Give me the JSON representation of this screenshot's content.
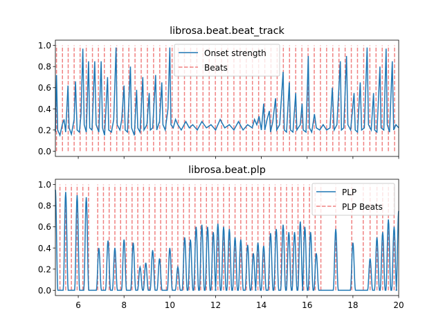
{
  "chart_data": [
    {
      "type": "line",
      "title": "librosa.beat.beat_track",
      "xlim": [
        5,
        20
      ],
      "ylim": [
        -0.05,
        1.05
      ],
      "yticks": [
        "0.0",
        "0.2",
        "0.4",
        "0.6",
        "0.8",
        "1.0"
      ],
      "xticks_labeled": false,
      "legend_position": "upper center",
      "series": [
        {
          "name": "Onset strength",
          "color": "#1f77b4",
          "style": "solid",
          "points": [
            [
              5.0,
              0.18
            ],
            [
              5.05,
              0.72
            ],
            [
              5.1,
              0.2
            ],
            [
              5.2,
              0.15
            ],
            [
              5.3,
              0.25
            ],
            [
              5.38,
              0.3
            ],
            [
              5.45,
              0.18
            ],
            [
              5.55,
              0.62
            ],
            [
              5.6,
              0.22
            ],
            [
              5.7,
              0.16
            ],
            [
              5.82,
              0.3
            ],
            [
              5.88,
              0.66
            ],
            [
              5.95,
              0.2
            ],
            [
              6.05,
              0.18
            ],
            [
              6.12,
              0.35
            ],
            [
              6.2,
              0.97
            ],
            [
              6.26,
              0.25
            ],
            [
              6.35,
              0.18
            ],
            [
              6.45,
              0.85
            ],
            [
              6.5,
              0.22
            ],
            [
              6.6,
              0.2
            ],
            [
              6.72,
              0.85
            ],
            [
              6.78,
              0.25
            ],
            [
              6.9,
              0.18
            ],
            [
              7.0,
              0.85
            ],
            [
              7.06,
              0.22
            ],
            [
              7.15,
              0.15
            ],
            [
              7.28,
              0.7
            ],
            [
              7.33,
              0.2
            ],
            [
              7.45,
              0.18
            ],
            [
              7.55,
              0.3
            ],
            [
              7.65,
              0.98
            ],
            [
              7.7,
              0.25
            ],
            [
              7.82,
              0.2
            ],
            [
              7.9,
              0.3
            ],
            [
              8.0,
              0.62
            ],
            [
              8.05,
              0.2
            ],
            [
              8.15,
              0.18
            ],
            [
              8.28,
              0.8
            ],
            [
              8.33,
              0.22
            ],
            [
              8.45,
              0.15
            ],
            [
              8.55,
              0.58
            ],
            [
              8.6,
              0.22
            ],
            [
              8.7,
              0.18
            ],
            [
              8.82,
              0.7
            ],
            [
              8.87,
              0.2
            ],
            [
              9.0,
              0.25
            ],
            [
              9.1,
              0.55
            ],
            [
              9.15,
              0.2
            ],
            [
              9.25,
              0.22
            ],
            [
              9.38,
              0.72
            ],
            [
              9.43,
              0.2
            ],
            [
              9.55,
              0.28
            ],
            [
              9.65,
              0.65
            ],
            [
              9.7,
              0.25
            ],
            [
              9.8,
              0.2
            ],
            [
              9.92,
              0.4
            ],
            [
              10.0,
              0.98
            ],
            [
              10.05,
              0.25
            ],
            [
              10.15,
              0.22
            ],
            [
              10.25,
              0.3
            ],
            [
              10.35,
              0.25
            ],
            [
              10.5,
              0.2
            ],
            [
              10.7,
              0.28
            ],
            [
              10.85,
              0.22
            ],
            [
              11.0,
              0.25
            ],
            [
              11.2,
              0.2
            ],
            [
              11.4,
              0.28
            ],
            [
              11.6,
              0.22
            ],
            [
              11.8,
              0.25
            ],
            [
              12.0,
              0.2
            ],
            [
              12.2,
              0.3
            ],
            [
              12.4,
              0.22
            ],
            [
              12.6,
              0.25
            ],
            [
              12.8,
              0.2
            ],
            [
              13.0,
              0.28
            ],
            [
              13.2,
              0.2
            ],
            [
              13.4,
              0.25
            ],
            [
              13.6,
              0.22
            ],
            [
              13.7,
              0.3
            ],
            [
              13.8,
              0.25
            ],
            [
              13.9,
              0.33
            ],
            [
              14.0,
              0.2
            ],
            [
              14.1,
              0.45
            ],
            [
              14.15,
              0.2
            ],
            [
              14.25,
              0.3
            ],
            [
              14.35,
              0.38
            ],
            [
              14.4,
              0.18
            ],
            [
              14.5,
              0.28
            ],
            [
              14.62,
              0.5
            ],
            [
              14.67,
              0.2
            ],
            [
              14.8,
              0.25
            ],
            [
              14.95,
              0.75
            ],
            [
              15.0,
              0.2
            ],
            [
              15.1,
              0.18
            ],
            [
              15.22,
              0.65
            ],
            [
              15.27,
              0.2
            ],
            [
              15.38,
              0.18
            ],
            [
              15.5,
              0.55
            ],
            [
              15.55,
              0.2
            ],
            [
              15.7,
              0.25
            ],
            [
              15.78,
              0.45
            ],
            [
              15.83,
              0.2
            ],
            [
              15.95,
              0.18
            ],
            [
              16.05,
              0.9
            ],
            [
              16.1,
              0.22
            ],
            [
              16.2,
              0.18
            ],
            [
              16.32,
              0.35
            ],
            [
              16.4,
              0.22
            ],
            [
              16.55,
              0.2
            ],
            [
              16.7,
              0.25
            ],
            [
              16.85,
              0.2
            ],
            [
              17.0,
              0.22
            ],
            [
              17.1,
              0.6
            ],
            [
              17.18,
              0.2
            ],
            [
              17.3,
              0.25
            ],
            [
              17.45,
              0.85
            ],
            [
              17.5,
              0.2
            ],
            [
              17.6,
              0.22
            ],
            [
              17.72,
              0.9
            ],
            [
              17.78,
              0.25
            ],
            [
              17.9,
              0.2
            ],
            [
              18.05,
              0.55
            ],
            [
              18.1,
              0.2
            ],
            [
              18.2,
              0.18
            ],
            [
              18.32,
              0.65
            ],
            [
              18.38,
              0.2
            ],
            [
              18.5,
              0.22
            ],
            [
              18.62,
              0.98
            ],
            [
              18.68,
              0.25
            ],
            [
              18.8,
              0.2
            ],
            [
              18.9,
              0.55
            ],
            [
              18.95,
              0.2
            ],
            [
              19.05,
              0.18
            ],
            [
              19.18,
              0.8
            ],
            [
              19.23,
              0.22
            ],
            [
              19.35,
              0.2
            ],
            [
              19.45,
              0.97
            ],
            [
              19.5,
              0.25
            ],
            [
              19.6,
              0.18
            ],
            [
              19.72,
              0.85
            ],
            [
              19.78,
              0.2
            ],
            [
              19.88,
              0.25
            ],
            [
              20.0,
              0.22
            ]
          ]
        },
        {
          "name": "Beats",
          "color": "#f08080",
          "style": "dashed",
          "vlines_y": [
            0.0,
            1.0
          ],
          "x": [
            5.05,
            5.31,
            5.56,
            5.82,
            6.08,
            6.35,
            6.62,
            6.88,
            7.14,
            7.41,
            7.68,
            7.95,
            8.21,
            8.48,
            8.75,
            9.02,
            9.29,
            9.56,
            9.83,
            10.1,
            10.37,
            10.64,
            10.91,
            11.18,
            11.45,
            11.72,
            11.99,
            12.26,
            12.53,
            12.8,
            13.07,
            13.34,
            13.61,
            13.88,
            14.15,
            14.42,
            14.69,
            14.96,
            15.23,
            15.5,
            15.77,
            16.04,
            16.31,
            16.58,
            16.85,
            17.12,
            17.39,
            17.66,
            17.93,
            18.2,
            18.47,
            18.74,
            19.01,
            19.28,
            19.55,
            19.82
          ]
        }
      ]
    },
    {
      "type": "line",
      "title": "librosa.beat.plp",
      "xlim": [
        5,
        20
      ],
      "ylim": [
        -0.05,
        1.05
      ],
      "xticks": [
        "6",
        "8",
        "10",
        "12",
        "14",
        "16",
        "18",
        "20"
      ],
      "yticks": [
        "0.0",
        "0.2",
        "0.4",
        "0.6",
        "0.8",
        "1.0"
      ],
      "legend_position": "upper right",
      "series": [
        {
          "name": "PLP",
          "color": "#1f77b4",
          "style": "solid",
          "peaks": [
            [
              5.0,
              0.95
            ],
            [
              5.45,
              0.93
            ],
            [
              5.95,
              0.9
            ],
            [
              6.35,
              0.88
            ],
            [
              6.9,
              0.4
            ],
            [
              7.3,
              0.47
            ],
            [
              7.6,
              0.4
            ],
            [
              8.0,
              0.48
            ],
            [
              8.4,
              0.45
            ],
            [
              8.7,
              0.22
            ],
            [
              8.95,
              0.26
            ],
            [
              9.25,
              0.38
            ],
            [
              9.55,
              0.3
            ],
            [
              10.0,
              0.4
            ],
            [
              10.35,
              0.22
            ],
            [
              10.65,
              0.5
            ],
            [
              10.9,
              0.48
            ],
            [
              11.15,
              0.6
            ],
            [
              11.4,
              0.62
            ],
            [
              11.65,
              0.6
            ],
            [
              11.9,
              0.55
            ],
            [
              12.1,
              0.63
            ],
            [
              12.35,
              0.6
            ],
            [
              12.6,
              0.58
            ],
            [
              12.85,
              0.5
            ],
            [
              13.1,
              0.48
            ],
            [
              13.4,
              0.43
            ],
            [
              13.65,
              0.35
            ],
            [
              13.85,
              0.45
            ],
            [
              14.1,
              0.42
            ],
            [
              14.4,
              0.54
            ],
            [
              14.65,
              0.58
            ],
            [
              14.95,
              0.62
            ],
            [
              15.2,
              0.55
            ],
            [
              15.45,
              0.55
            ],
            [
              15.7,
              0.65
            ],
            [
              15.9,
              0.6
            ],
            [
              16.15,
              0.55
            ],
            [
              16.4,
              0.35
            ],
            [
              17.25,
              0.58
            ],
            [
              18.0,
              0.45
            ],
            [
              18.75,
              0.3
            ],
            [
              19.05,
              0.5
            ],
            [
              19.3,
              0.55
            ],
            [
              19.55,
              0.67
            ],
            [
              19.8,
              0.6
            ],
            [
              20.0,
              0.75
            ]
          ],
          "peak_halfwidth": 0.11
        },
        {
          "name": "PLP Beats",
          "color": "#f08080",
          "style": "dashed",
          "vlines_y": [
            0.0,
            1.0
          ],
          "x": [
            5.2,
            5.45,
            5.7,
            5.95,
            6.2,
            6.45,
            6.85,
            7.1,
            7.35,
            7.6,
            7.85,
            8.1,
            8.35,
            8.6,
            8.85,
            9.1,
            9.35,
            9.6,
            9.85,
            10.1,
            10.35,
            10.6,
            10.85,
            11.1,
            11.35,
            11.6,
            11.85,
            12.1,
            12.35,
            12.6,
            12.85,
            13.1,
            13.35,
            13.6,
            13.85,
            14.1,
            14.35,
            14.6,
            14.85,
            15.1,
            15.35,
            15.6,
            15.85,
            16.1,
            16.35,
            16.6,
            17.25,
            17.95,
            18.45,
            18.75,
            19.05,
            19.3,
            19.55,
            19.8
          ]
        }
      ]
    }
  ]
}
